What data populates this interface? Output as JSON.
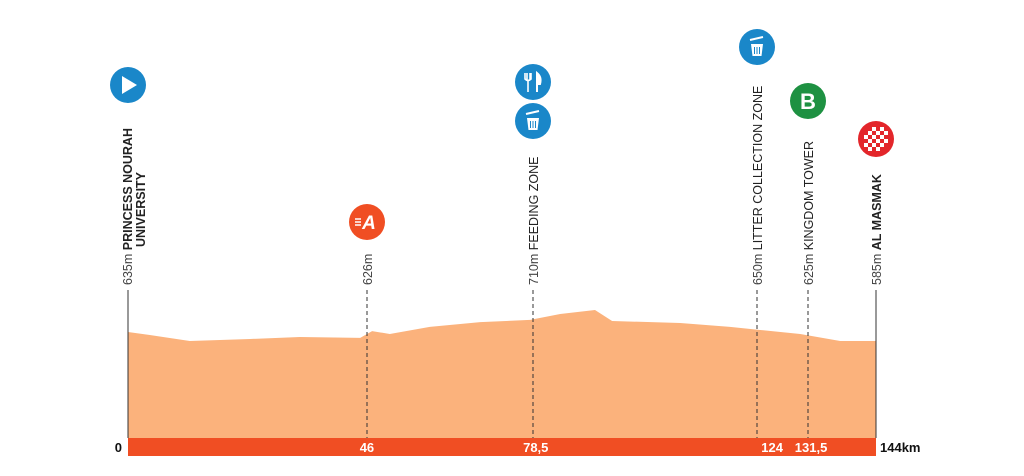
{
  "chart_data": {
    "type": "area",
    "xlabel": "",
    "ylabel": "",
    "x_unit": "km",
    "xlim": [
      0,
      144
    ],
    "profile": {
      "km": [
        0,
        4.2,
        11.9,
        23.5,
        33.1,
        44.7,
        47,
        50.4,
        58.1,
        67.8,
        77.4,
        83.2,
        89.9,
        93.2,
        106.3,
        115.9,
        121.7,
        129.4,
        137.1,
        144
      ],
      "elev": [
        635,
        618,
        585,
        596,
        607,
        602,
        640,
        624,
        663,
        690,
        702,
        735,
        757,
        696,
        685,
        663,
        646,
        624,
        585,
        585
      ]
    },
    "distance_ticks": [
      {
        "km": 0,
        "label": "0"
      },
      {
        "km": 46,
        "label": "46"
      },
      {
        "km": 78.5,
        "label": "78,5"
      },
      {
        "km": 124,
        "label": "124"
      },
      {
        "km": 131.5,
        "label": "131,5"
      },
      {
        "km": 144,
        "label": "144km"
      }
    ],
    "markers": [
      {
        "km": 0,
        "elev_label": "635m",
        "name": "PRINCESS NOURAH",
        "name2": "UNIVERSITY",
        "bold": true,
        "icons": [
          "start-icon"
        ],
        "line": "solid"
      },
      {
        "km": 46,
        "elev_label": "626m",
        "name": "",
        "bold": false,
        "icons": [
          "intermediate-sprint-a-icon"
        ],
        "line": "dashed"
      },
      {
        "km": 78.5,
        "elev_label": "710m",
        "name": "FEEDING ZONE",
        "bold": false,
        "icons": [
          "feeding-icon",
          "litter-icon"
        ],
        "line": "dashed"
      },
      {
        "km": 124,
        "elev_label": "650m",
        "name": "LITTER COLLECTION ZONE",
        "bold": false,
        "icons": [
          "litter-icon"
        ],
        "line": "dashed"
      },
      {
        "km": 131.5,
        "elev_label": "625m",
        "name": "KINGDOM TOWER",
        "bold": false,
        "icons": [
          "intermediate-sprint-b-icon"
        ],
        "line": "dashed"
      },
      {
        "km": 144,
        "elev_label": "585m",
        "name": "AL MASMAK",
        "bold": true,
        "icons": [
          "finish-icon"
        ],
        "line": "solid"
      }
    ],
    "colors": {
      "profile_fill": "#fbb27c",
      "distance_bar": "#f04e23",
      "blue_icon": "#1a87c9",
      "green_icon": "#1e9142",
      "sprint_a": "#f04e23",
      "finish": "#e3262b"
    }
  }
}
